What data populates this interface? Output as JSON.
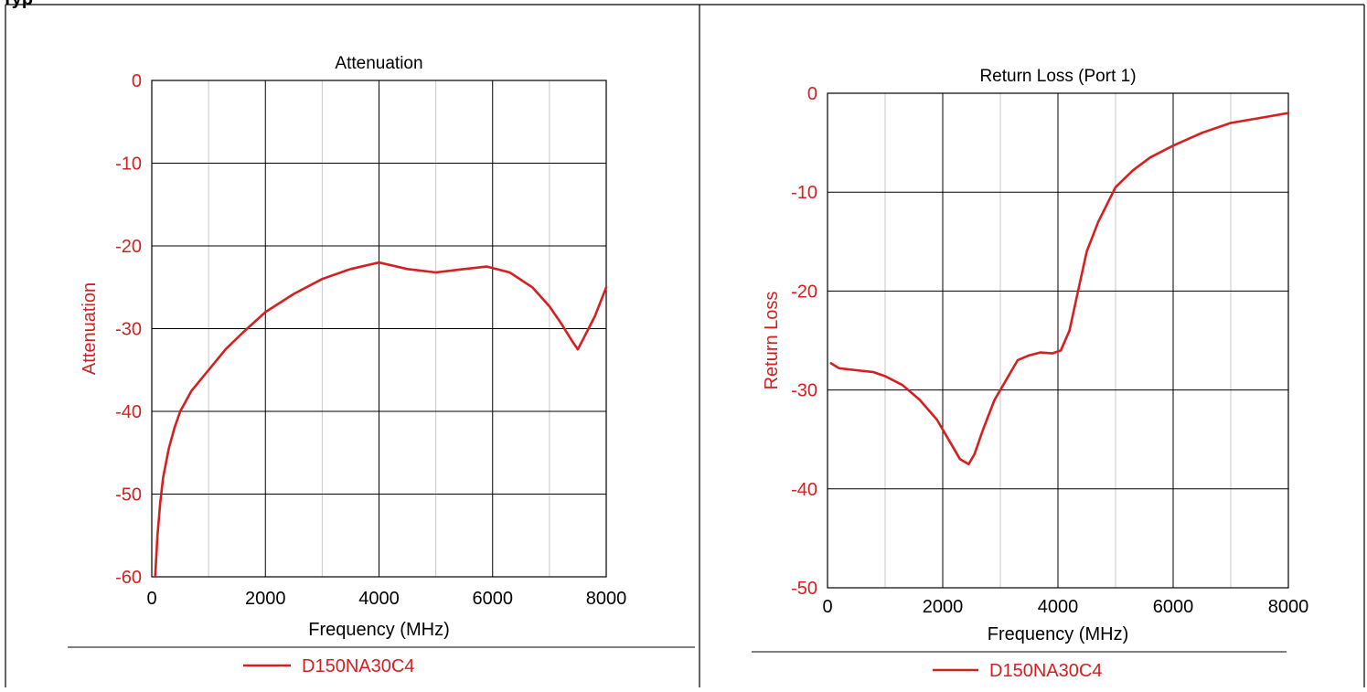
{
  "chart_data": [
    {
      "type": "line",
      "title": "Attenuation",
      "xlabel": "Frequency (MHz)",
      "ylabel": "Attenuation",
      "xlim": [
        0,
        8000
      ],
      "ylim": [
        -60,
        0
      ],
      "x_ticks": [
        "0",
        "2000",
        "4000",
        "6000",
        "8000"
      ],
      "y_ticks": [
        "0",
        "-10",
        "-20",
        "-30",
        "-40",
        "-50",
        "-60"
      ],
      "grid": true,
      "legend": "bottom",
      "series": [
        {
          "name": "D150NA30C4",
          "color": "#d42020",
          "x": [
            60,
            100,
            150,
            200,
            300,
            400,
            500,
            700,
            1000,
            1300,
            1600,
            2000,
            2500,
            3000,
            3500,
            4000,
            4500,
            5000,
            5500,
            5900,
            6300,
            6700,
            7000,
            7200,
            7400,
            7500,
            7600,
            7800,
            8000
          ],
          "y": [
            -60,
            -55,
            -51,
            -48,
            -44.5,
            -42,
            -40,
            -37.5,
            -35,
            -32.5,
            -30.5,
            -28,
            -25.8,
            -24,
            -22.8,
            -22,
            -22.8,
            -23.2,
            -22.8,
            -22.5,
            -23.2,
            -25,
            -27.3,
            -29.3,
            -31.5,
            -32.5,
            -31.2,
            -28.5,
            -25
          ]
        }
      ]
    },
    {
      "type": "line",
      "title": "Return Loss (Port 1)",
      "xlabel": "Frequency (MHz)",
      "ylabel": "Return Loss",
      "xlim": [
        0,
        8000
      ],
      "ylim": [
        -50,
        0
      ],
      "x_ticks": [
        "0",
        "2000",
        "4000",
        "6000",
        "8000"
      ],
      "y_ticks": [
        "0",
        "-10",
        "-20",
        "-30",
        "-40",
        "-50"
      ],
      "grid": true,
      "legend": "bottom",
      "series": [
        {
          "name": "D150NA30C4",
          "color": "#d42020",
          "x": [
            60,
            200,
            500,
            800,
            1000,
            1300,
            1600,
            1900,
            2100,
            2300,
            2450,
            2550,
            2700,
            2900,
            3100,
            3300,
            3500,
            3700,
            3900,
            4050,
            4200,
            4350,
            4500,
            4700,
            5000,
            5300,
            5600,
            6000,
            6500,
            7000,
            7500,
            8000
          ],
          "y": [
            -27.3,
            -27.8,
            -28,
            -28.2,
            -28.6,
            -29.5,
            -31,
            -33,
            -35,
            -37,
            -37.5,
            -36.5,
            -34,
            -31,
            -29,
            -27,
            -26.5,
            -26.2,
            -26.3,
            -26,
            -24,
            -20,
            -16,
            -13,
            -9.5,
            -7.8,
            -6.5,
            -5.3,
            -4,
            -3,
            -2.5,
            -2
          ]
        }
      ]
    }
  ]
}
